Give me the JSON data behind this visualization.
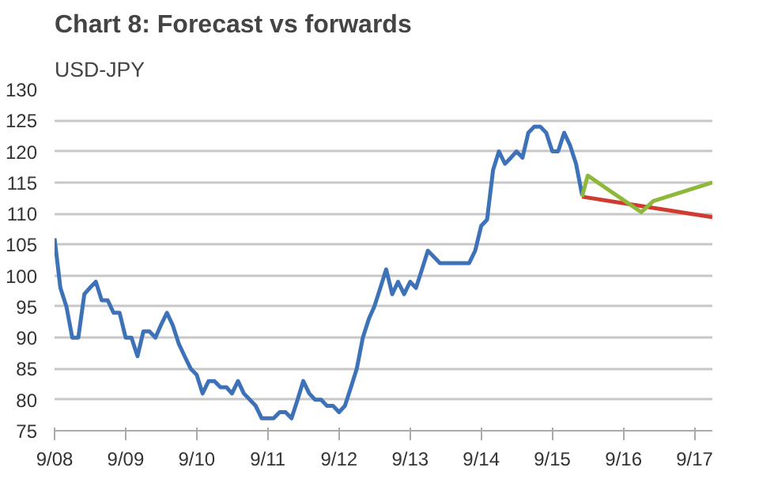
{
  "chart_data": {
    "type": "line",
    "title": "Chart 8: Forecast vs forwards",
    "ylabel": "USD-JPY",
    "xlim": [
      "2008-09",
      "2017-12"
    ],
    "xticks": [
      {
        "value": "2008-09",
        "label": "9/08"
      },
      {
        "value": "2009-09",
        "label": "9/09"
      },
      {
        "value": "2010-09",
        "label": "9/10"
      },
      {
        "value": "2011-09",
        "label": "9/11"
      },
      {
        "value": "2012-09",
        "label": "9/12"
      },
      {
        "value": "2013-09",
        "label": "9/13"
      },
      {
        "value": "2014-09",
        "label": "9/14"
      },
      {
        "value": "2015-09",
        "label": "9/15"
      },
      {
        "value": "2016-09",
        "label": "9/16"
      },
      {
        "value": "2017-09",
        "label": "9/17"
      }
    ],
    "ylim": [
      75,
      130
    ],
    "yticks": [
      75,
      80,
      85,
      90,
      95,
      100,
      105,
      110,
      115,
      120,
      125,
      130
    ],
    "grid": "y",
    "marker": "none",
    "line_style": "solid",
    "series": [
      {
        "color": "#3d72b8",
        "x": [
          "2008-09",
          "2008-10",
          "2008-11",
          "2008-12",
          "2009-01",
          "2009-02",
          "2009-03",
          "2009-04",
          "2009-05",
          "2009-06",
          "2009-07",
          "2009-08",
          "2009-09",
          "2009-10",
          "2009-11",
          "2009-12",
          "2010-01",
          "2010-02",
          "2010-03",
          "2010-04",
          "2010-05",
          "2010-06",
          "2010-07",
          "2010-08",
          "2010-09",
          "2010-10",
          "2010-11",
          "2010-12",
          "2011-01",
          "2011-02",
          "2011-03",
          "2011-04",
          "2011-05",
          "2011-06",
          "2011-07",
          "2011-08",
          "2011-09",
          "2011-10",
          "2011-11",
          "2011-12",
          "2012-01",
          "2012-02",
          "2012-03",
          "2012-04",
          "2012-05",
          "2012-06",
          "2012-07",
          "2012-08",
          "2012-09",
          "2012-10",
          "2012-11",
          "2012-12",
          "2013-01",
          "2013-02",
          "2013-03",
          "2013-04",
          "2013-05",
          "2013-06",
          "2013-07",
          "2013-08",
          "2013-09",
          "2013-10",
          "2013-11",
          "2013-12",
          "2014-01",
          "2014-02",
          "2014-03",
          "2014-04",
          "2014-05",
          "2014-06",
          "2014-07",
          "2014-08",
          "2014-09",
          "2014-10",
          "2014-11",
          "2014-12",
          "2015-01",
          "2015-02",
          "2015-03",
          "2015-04",
          "2015-05",
          "2015-06",
          "2015-07",
          "2015-08",
          "2015-09",
          "2015-10",
          "2015-11",
          "2015-12",
          "2016-01",
          "2016-02"
        ],
        "values": [
          106,
          98,
          95,
          90,
          90,
          97,
          98,
          99,
          96,
          96,
          94,
          94,
          90,
          90,
          87,
          91,
          91,
          90,
          92,
          94,
          92,
          89,
          87,
          85,
          84,
          81,
          83,
          83,
          82,
          82,
          81,
          83,
          81,
          80,
          79,
          77,
          77,
          77,
          78,
          78,
          77,
          80,
          83,
          81,
          80,
          80,
          79,
          79,
          78,
          79,
          82,
          85,
          90,
          93,
          95,
          98,
          101,
          97,
          99,
          97,
          99,
          98,
          101,
          104,
          103,
          102,
          102,
          102,
          102,
          102,
          102,
          104,
          108,
          109,
          117,
          120,
          118,
          119,
          120,
          119,
          123,
          124,
          124,
          123,
          120,
          120,
          123,
          121,
          118,
          113
        ]
      },
      {
        "color": "#d03a2f",
        "x": [
          "2016-02",
          "2017-12"
        ],
        "values": [
          112.7,
          109.4
        ]
      },
      {
        "color": "#8db83a",
        "x": [
          "2016-02",
          "2016-03",
          "2016-12",
          "2017-02",
          "2017-12"
        ],
        "values": [
          112.7,
          116.1,
          110.2,
          112,
          115
        ]
      }
    ]
  }
}
